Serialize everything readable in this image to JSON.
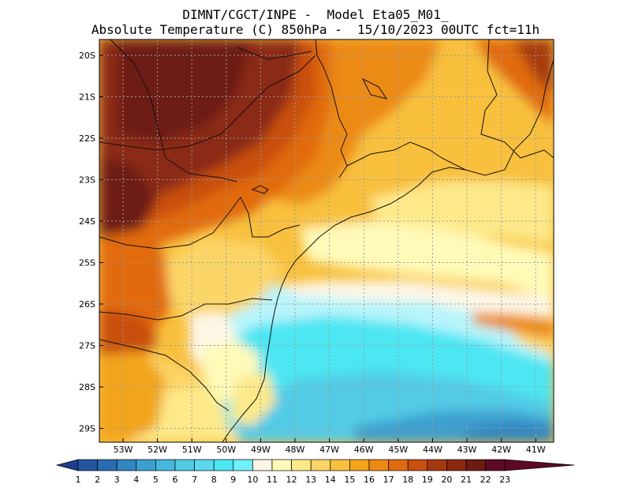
{
  "title": {
    "line1": "DIMNT/CGCT/INPE -  Model Eta05_M01_",
    "line2": "Absolute Temperature (C) 850hPa -  15/10/2023 00UTC fct=11h"
  },
  "axes": {
    "lat_labels": [
      "20S",
      "21S",
      "22S",
      "23S",
      "24S",
      "25S",
      "26S",
      "27S",
      "28S",
      "29S"
    ],
    "lon_labels": [
      "53W",
      "52W",
      "51W",
      "50W",
      "49W",
      "48W",
      "47W",
      "46W",
      "45W",
      "44W",
      "43W",
      "42W",
      "41W"
    ]
  },
  "colorbar": {
    "labels": [
      "1",
      "2",
      "3",
      "4",
      "5",
      "6",
      "7",
      "8",
      "9",
      "10",
      "11",
      "12",
      "13",
      "14",
      "15",
      "16",
      "17",
      "18",
      "19",
      "20",
      "21",
      "22",
      "23"
    ],
    "colors": [
      "#1d3f8f",
      "#23559f",
      "#2a6cb1",
      "#3286c1",
      "#3c9fcf",
      "#47b6dc",
      "#52cbe6",
      "#5ad9ee",
      "#4de6f3",
      "#6ff0fb",
      "#fdf6e6",
      "#fffab8",
      "#fde98a",
      "#fcd568",
      "#f8c03e",
      "#f2a51a",
      "#ec8a14",
      "#e16a10",
      "#c9500f",
      "#a53a10",
      "#8b2a12",
      "#6e1a12",
      "#5c0a25"
    ]
  }
}
